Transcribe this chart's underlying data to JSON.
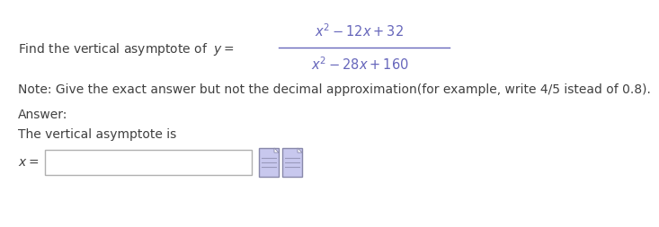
{
  "bg_color": "#ffffff",
  "text_color": "#404040",
  "math_color": "#6666bb",
  "find_text": "Find the vertical asymptote of  ",
  "numerator": "$x^2 - 12x + 32$",
  "denominator": "$x^2 - 28x + 160$",
  "note_text": "Note: Give the exact answer but not the decimal approximation(for example, write 4/5 istead of 0.8).",
  "answer_text": "Answer:",
  "asymptote_text": "The vertical asymptote is",
  "x_eq_label": "$x =$",
  "font_size_main": 10,
  "font_size_math": 10.5,
  "icon_color_face": "#c8c8ee",
  "icon_color_edge": "#8888aa",
  "icon_line_color": "#9999bb"
}
